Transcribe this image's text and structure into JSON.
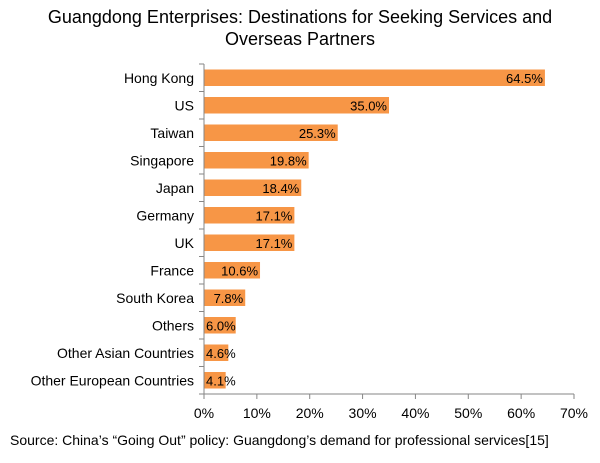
{
  "chart_data": {
    "type": "bar",
    "orientation": "horizontal",
    "title_lines": [
      "Guangdong Enterprises: Destinations for Seeking Services and",
      "Overseas Partners"
    ],
    "categories": [
      "Hong Kong",
      "US",
      "Taiwan",
      "Singapore",
      "Japan",
      "Germany",
      "UK",
      "France",
      "South Korea",
      "Others",
      "Other Asian Countries",
      "Other European Countries"
    ],
    "values": [
      64.5,
      35.0,
      25.3,
      19.8,
      18.4,
      17.1,
      17.1,
      10.6,
      7.8,
      6.0,
      4.6,
      4.1
    ],
    "data_labels": [
      "64.5%",
      "35.0%",
      "25.3%",
      "19.8%",
      "18.4%",
      "17.1%",
      "17.1%",
      "10.6%",
      "7.8%",
      "6.0%",
      "4.6%",
      "4.1%"
    ],
    "xlim": [
      0,
      70
    ],
    "x_ticks": [
      0,
      10,
      20,
      30,
      40,
      50,
      60,
      70
    ],
    "x_tick_labels": [
      "0%",
      "10%",
      "20%",
      "30%",
      "40%",
      "50%",
      "60%",
      "70%"
    ],
    "bar_color": "#F79646",
    "grid": false,
    "source": "Source: China’s “Going Out” policy: Guangdong’s demand for professional services[15]"
  }
}
